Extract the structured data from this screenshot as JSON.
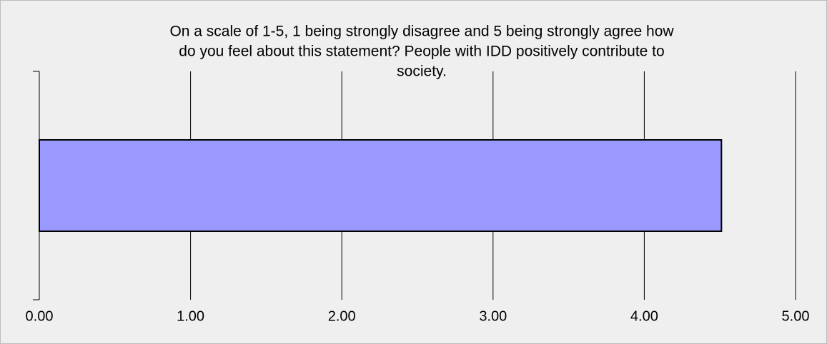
{
  "chart_data": {
    "type": "barh",
    "title": [
      "On a scale of 1-5, 1 being strongly disagree and 5 being strongly agree how",
      "do you feel about this statement? People with IDD positively contribute to",
      "society."
    ],
    "categories": [
      null
    ],
    "values": [
      4.51
    ],
    "color": "#9999ff",
    "xlim": [
      0,
      5
    ],
    "xticks": [
      {
        "value": 0,
        "label": "0.00"
      },
      {
        "value": 1,
        "label": "1.00"
      },
      {
        "value": 2,
        "label": "2.00"
      },
      {
        "value": 3,
        "label": "3.00"
      },
      {
        "value": 4,
        "label": "4.00"
      },
      {
        "value": 5,
        "label": "5.00"
      }
    ],
    "grid": true
  }
}
